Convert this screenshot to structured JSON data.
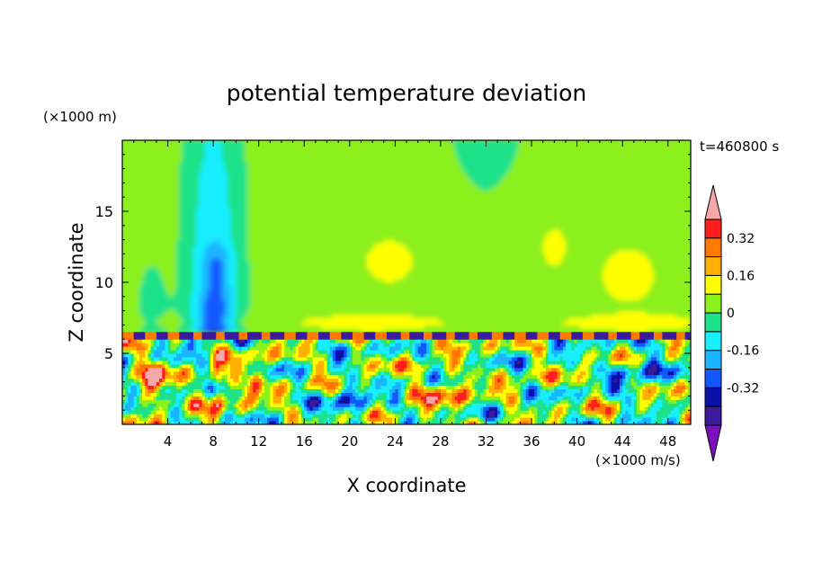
{
  "chart_data": {
    "type": "heatmap",
    "title": "potential temperature deviation",
    "xlabel": "X coordinate",
    "ylabel": "Z coordinate",
    "x_unit": "(×1000 m/s)",
    "y_unit": "(×1000 m)",
    "time_label": "t=460800 s",
    "xlim": [
      0,
      50
    ],
    "ylim": [
      0,
      20
    ],
    "x_ticks": [
      4,
      8,
      12,
      16,
      20,
      24,
      28,
      32,
      36,
      40,
      44,
      48
    ],
    "y_ticks": [
      5,
      10,
      15
    ],
    "colorbar": {
      "levels": [
        -0.48,
        -0.4,
        -0.32,
        -0.24,
        -0.16,
        -0.08,
        0,
        0.08,
        0.16,
        0.24,
        0.32,
        0.4
      ],
      "labels": [
        "-0.32",
        "-0.16",
        "0",
        "0.16",
        "0.32"
      ],
      "label_values": [
        -0.32,
        -0.16,
        0,
        0.16,
        0.32
      ],
      "colors": [
        "#7a10b8",
        "#3c1a9c",
        "#0a10a8",
        "#1258ff",
        "#1ab4ff",
        "#18eeff",
        "#1ee28a",
        "#8cf01c",
        "#ffff00",
        "#ffb000",
        "#ff7800",
        "#ff1c1c",
        "#f5a8a8"
      ],
      "extend": "both"
    },
    "regions": [
      {
        "name": "upper background",
        "value": 0.04
      },
      {
        "name": "cold column",
        "x": [
          4,
          13
        ],
        "z": [
          6.5,
          19.5
        ],
        "min_value": -0.36
      },
      {
        "name": "warm patches upper right",
        "x": [
          36,
          49
        ],
        "z": [
          8,
          14
        ],
        "value": 0.12
      },
      {
        "name": "stable layer interface",
        "z": 6.4
      },
      {
        "name": "turbulent lower layer",
        "z": [
          0,
          6.4
        ],
        "range": [
          -0.48,
          0.44
        ]
      }
    ]
  }
}
